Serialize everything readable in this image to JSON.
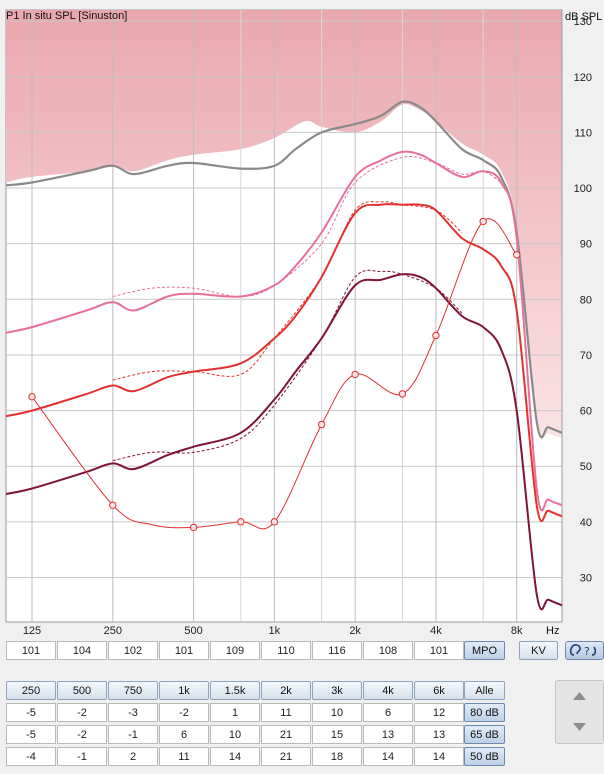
{
  "chart_title": "P1 In situ SPL [Sinuston]",
  "y_unit": "dB SPL",
  "x_unit": "Hz",
  "chart_data": {
    "type": "line",
    "x_scale": "log",
    "xlim": [
      100,
      11800
    ],
    "ylim": [
      22,
      132
    ],
    "x_ticks": [
      {
        "value": 125,
        "label": "125"
      },
      {
        "value": 250,
        "label": "250"
      },
      {
        "value": 500,
        "label": "500"
      },
      {
        "value": 1000,
        "label": "1k"
      },
      {
        "value": 2000,
        "label": "2k"
      },
      {
        "value": 4000,
        "label": "4k"
      },
      {
        "value": 8000,
        "label": "8k"
      }
    ],
    "minor_x_gridlines": [
      750,
      1500,
      3000,
      6000
    ],
    "y_ticks": [
      30,
      40,
      50,
      60,
      70,
      80,
      90,
      100,
      110,
      120,
      130
    ],
    "grid": true,
    "series": [
      {
        "role": "uncomfortable-area",
        "fill": [
          "#e9a7ad",
          "#fbe3e5"
        ],
        "x": [
          100,
          125,
          200,
          250,
          300,
          400,
          500,
          750,
          1000,
          1300,
          1500,
          2000,
          2500,
          3000,
          3500,
          4000,
          5000,
          6000,
          7000,
          8000,
          9500,
          10500,
          11800
        ],
        "y": [
          101,
          102,
          103,
          104,
          103,
          105,
          106,
          107,
          109,
          112,
          111,
          110,
          112,
          115,
          114,
          112,
          108,
          106,
          103,
          93,
          58,
          56,
          55
        ]
      },
      {
        "role": "mpo",
        "color": "#8a8a8a",
        "width": 2.2,
        "x": [
          100,
          125,
          200,
          250,
          300,
          400,
          500,
          750,
          1000,
          1200,
          1500,
          2000,
          2500,
          3000,
          3500,
          4000,
          5000,
          6000,
          7000,
          8000,
          9500,
          10500,
          11800
        ],
        "y": [
          100.5,
          101,
          103,
          104,
          102.5,
          104,
          104.5,
          103.5,
          104,
          107,
          110,
          111.5,
          113,
          115.5,
          114.5,
          112,
          107,
          105,
          102,
          92,
          58,
          57,
          56
        ]
      },
      {
        "role": "output-80dB",
        "color": "#e8709a",
        "width": 2,
        "x": [
          100,
          125,
          200,
          250,
          300,
          400,
          500,
          750,
          1000,
          1200,
          1500,
          2000,
          2500,
          3000,
          3500,
          4000,
          5000,
          6000,
          7000,
          8000,
          9500,
          10500,
          11800
        ],
        "y": [
          74,
          75,
          78,
          79.5,
          78,
          80.5,
          81,
          80.5,
          82.5,
          86,
          92,
          102,
          105,
          106.5,
          106,
          104.5,
          102,
          103,
          101,
          91,
          46,
          44,
          43
        ]
      },
      {
        "role": "target-80dB",
        "color": "#e8709a",
        "dashed": true,
        "width": 1,
        "x": [
          250,
          350,
          500,
          750,
          1000,
          1500,
          2000,
          3000,
          4000,
          5000,
          6000,
          7000
        ],
        "y": [
          80.5,
          82,
          82,
          80.5,
          82.5,
          90,
          101,
          105.5,
          104.5,
          102.5,
          103,
          101
        ]
      },
      {
        "role": "output-65dB",
        "color": "#e33030",
        "width": 2,
        "x": [
          100,
          125,
          200,
          250,
          300,
          400,
          500,
          750,
          1000,
          1200,
          1500,
          2000,
          2500,
          3000,
          3500,
          4000,
          5000,
          6000,
          7000,
          8000,
          9500,
          10500,
          11800
        ],
        "y": [
          59,
          60,
          63,
          64.5,
          63.5,
          66,
          67,
          68.5,
          73,
          77,
          84,
          95.5,
          97,
          97,
          97,
          96,
          91,
          89,
          86,
          78,
          43,
          42,
          41
        ]
      },
      {
        "role": "target-65dB",
        "color": "#e33030",
        "dashed": true,
        "width": 1,
        "x": [
          250,
          350,
          500,
          750,
          1000,
          1500,
          2000,
          2500,
          3000,
          4000,
          5000
        ],
        "y": [
          65.5,
          67,
          67,
          66.5,
          73,
          84,
          96,
          97.5,
          97,
          96,
          92
        ]
      },
      {
        "role": "output-50dB",
        "color": "#7e1438",
        "width": 2,
        "x": [
          100,
          125,
          200,
          250,
          300,
          400,
          500,
          750,
          1000,
          1200,
          1500,
          2000,
          2500,
          3000,
          3500,
          4000,
          5000,
          6000,
          7000,
          8000,
          9500,
          10500,
          11800
        ],
        "y": [
          45,
          46,
          49,
          50.5,
          49.5,
          52,
          53.5,
          56,
          62,
          67,
          73,
          82.5,
          83.5,
          84.5,
          84,
          82,
          77,
          75,
          71,
          60,
          27,
          26,
          25
        ]
      },
      {
        "role": "target-50dB",
        "color": "#7e1438",
        "dashed": true,
        "width": 1,
        "x": [
          250,
          350,
          500,
          750,
          1000,
          1500,
          2000,
          2500,
          3000,
          4000,
          5000
        ],
        "y": [
          51,
          52.5,
          52.5,
          55,
          61,
          73,
          84,
          85,
          84.5,
          82,
          77.5
        ]
      },
      {
        "role": "threshold",
        "color": "#e33030",
        "width": 1,
        "markers": true,
        "x": [
          125,
          250,
          350,
          500,
          750,
          1000,
          1500,
          2000,
          3000,
          4000,
          6000,
          8000
        ],
        "y": [
          62.5,
          43,
          39.5,
          39,
          40,
          40,
          57.5,
          66.5,
          63,
          73.5,
          94,
          88
        ],
        "marked_x": [
          125,
          250,
          500,
          750,
          1000,
          1500,
          2000,
          3000,
          4000,
          6000,
          8000
        ]
      }
    ]
  },
  "mpo_row": {
    "values": [
      "101",
      "104",
      "102",
      "101",
      "109",
      "110",
      "116",
      "108",
      "101"
    ],
    "mpo_label": "MPO",
    "kv_label": "KV"
  },
  "gain_table": {
    "headers": [
      "250",
      "500",
      "750",
      "1k",
      "1.5k",
      "2k",
      "3k",
      "4k",
      "6k"
    ],
    "all_label": "Alle",
    "rows": [
      {
        "label": "80 dB",
        "values": [
          "-5",
          "-2",
          "-3",
          "-2",
          "1",
          "11",
          "10",
          "6",
          "12"
        ]
      },
      {
        "label": "65 dB",
        "values": [
          "-5",
          "-2",
          "-1",
          "6",
          "10",
          "21",
          "15",
          "13",
          "13"
        ]
      },
      {
        "label": "50 dB",
        "values": [
          "-4",
          "-1",
          "2",
          "11",
          "14",
          "21",
          "18",
          "14",
          "14"
        ]
      }
    ]
  },
  "icons": {
    "ear_both": "ear-question-icon",
    "up": "triangle-up-icon",
    "down": "triangle-down-icon"
  }
}
